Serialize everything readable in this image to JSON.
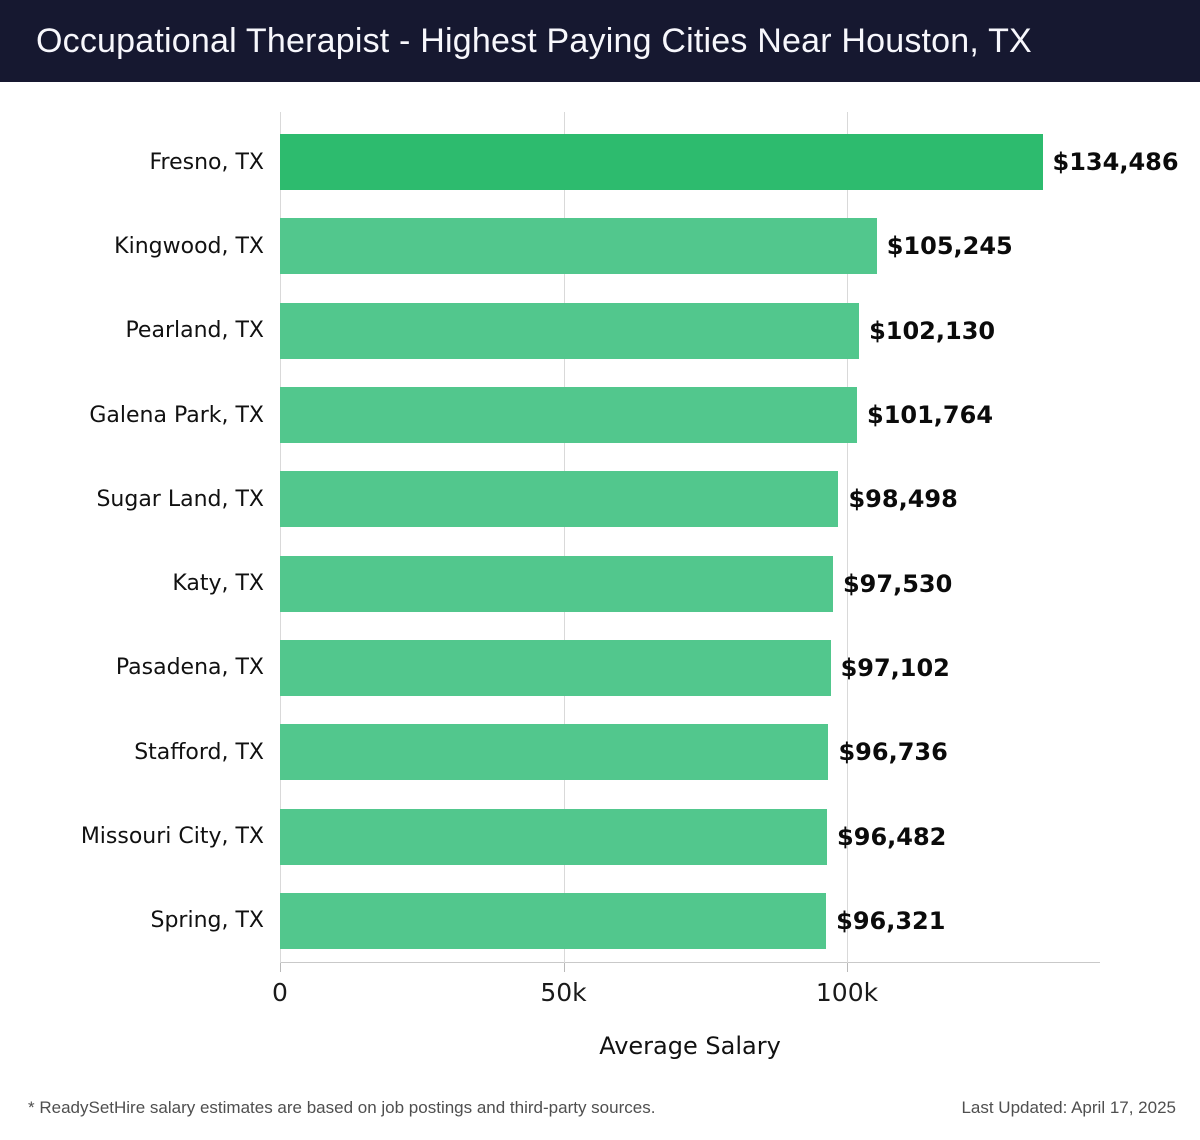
{
  "header": {
    "title": "Occupational Therapist - Highest Paying Cities Near Houston, TX",
    "bg_color": "#161830"
  },
  "chart_data": {
    "type": "bar",
    "orientation": "horizontal",
    "title": "Occupational Therapist - Highest Paying Cities Near Houston, TX",
    "xlabel": "Average Salary",
    "ylabel": "",
    "categories": [
      "Fresno, TX",
      "Kingwood, TX",
      "Pearland, TX",
      "Galena Park, TX",
      "Sugar Land, TX",
      "Katy, TX",
      "Pasadena, TX",
      "Stafford, TX",
      "Missouri City, TX",
      "Spring, TX"
    ],
    "values": [
      134486,
      105245,
      102130,
      101764,
      98498,
      97530,
      97102,
      96736,
      96482,
      96321
    ],
    "value_labels": [
      "$134,486",
      "$105,245",
      "$102,130",
      "$101,764",
      "$98,498",
      "$97,530",
      "$97,102",
      "$96,736",
      "$96,482",
      "$96,321"
    ],
    "xticks": [
      {
        "value": 0,
        "label": "0"
      },
      {
        "value": 50000,
        "label": "50k"
      },
      {
        "value": 100000,
        "label": "100k"
      }
    ],
    "xlim": [
      0,
      144620
    ],
    "grid": true,
    "legend": false,
    "highlight_color": "#2dbb6e",
    "bar_color": "#52c78d"
  },
  "footer": {
    "disclaimer": "* ReadySetHire salary estimates are based on job postings and third-party sources.",
    "last_updated": "Last Updated: April 17, 2025"
  }
}
